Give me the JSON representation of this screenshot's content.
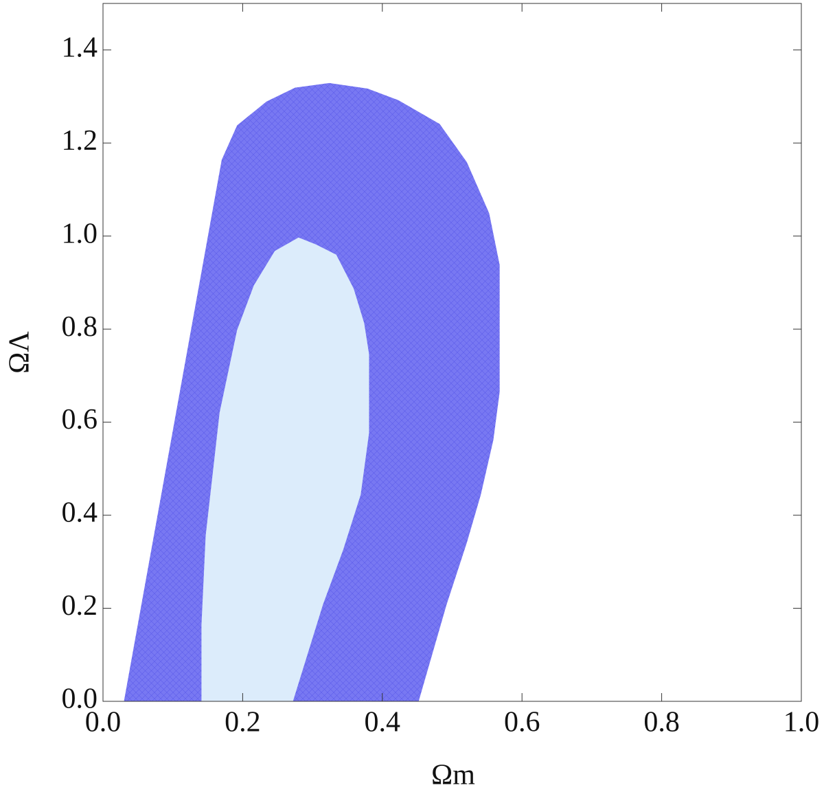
{
  "chart_data": {
    "type": "contour",
    "xlabel": "Ωm",
    "ylabel": "ΩΛ",
    "xlim": [
      0,
      1
    ],
    "ylim": [
      0,
      1.5
    ],
    "xticks": [
      {
        "value": 0,
        "label": "0.0"
      },
      0.2,
      0.4,
      0.6,
      0.8,
      {
        "value": 1,
        "label": "1.0"
      }
    ],
    "yticks": [
      {
        "value": 0,
        "label": "0.0"
      },
      0.2,
      0.4,
      0.6,
      0.8,
      {
        "value": 1,
        "label": "1.0"
      },
      1.2,
      1.4
    ],
    "series": [
      {
        "color": "#7878f2",
        "x": [
          0.03,
          0.17,
          0.192,
          0.234,
          0.275,
          0.324,
          0.379,
          0.423,
          0.482,
          0.521,
          0.553,
          0.568,
          0.568,
          0.559,
          0.541,
          0.521,
          0.492,
          0.452
        ],
        "y": [
          0,
          1.164,
          1.238,
          1.289,
          1.319,
          1.329,
          1.317,
          1.292,
          1.241,
          1.159,
          1.049,
          0.938,
          0.665,
          0.562,
          0.444,
          0.341,
          0.208,
          0
        ]
      },
      {
        "color": "#dcecfb",
        "x": [
          0.141,
          0.141,
          0.147,
          0.167,
          0.192,
          0.216,
          0.246,
          0.28,
          0.305,
          0.334,
          0.359,
          0.374,
          0.381,
          0.381,
          0.369,
          0.344,
          0.315,
          0.272
        ],
        "y": [
          0,
          0.164,
          0.356,
          0.621,
          0.798,
          0.894,
          0.968,
          0.997,
          0.982,
          0.96,
          0.887,
          0.813,
          0.746,
          0.577,
          0.444,
          0.326,
          0.208,
          0
        ]
      }
    ]
  }
}
